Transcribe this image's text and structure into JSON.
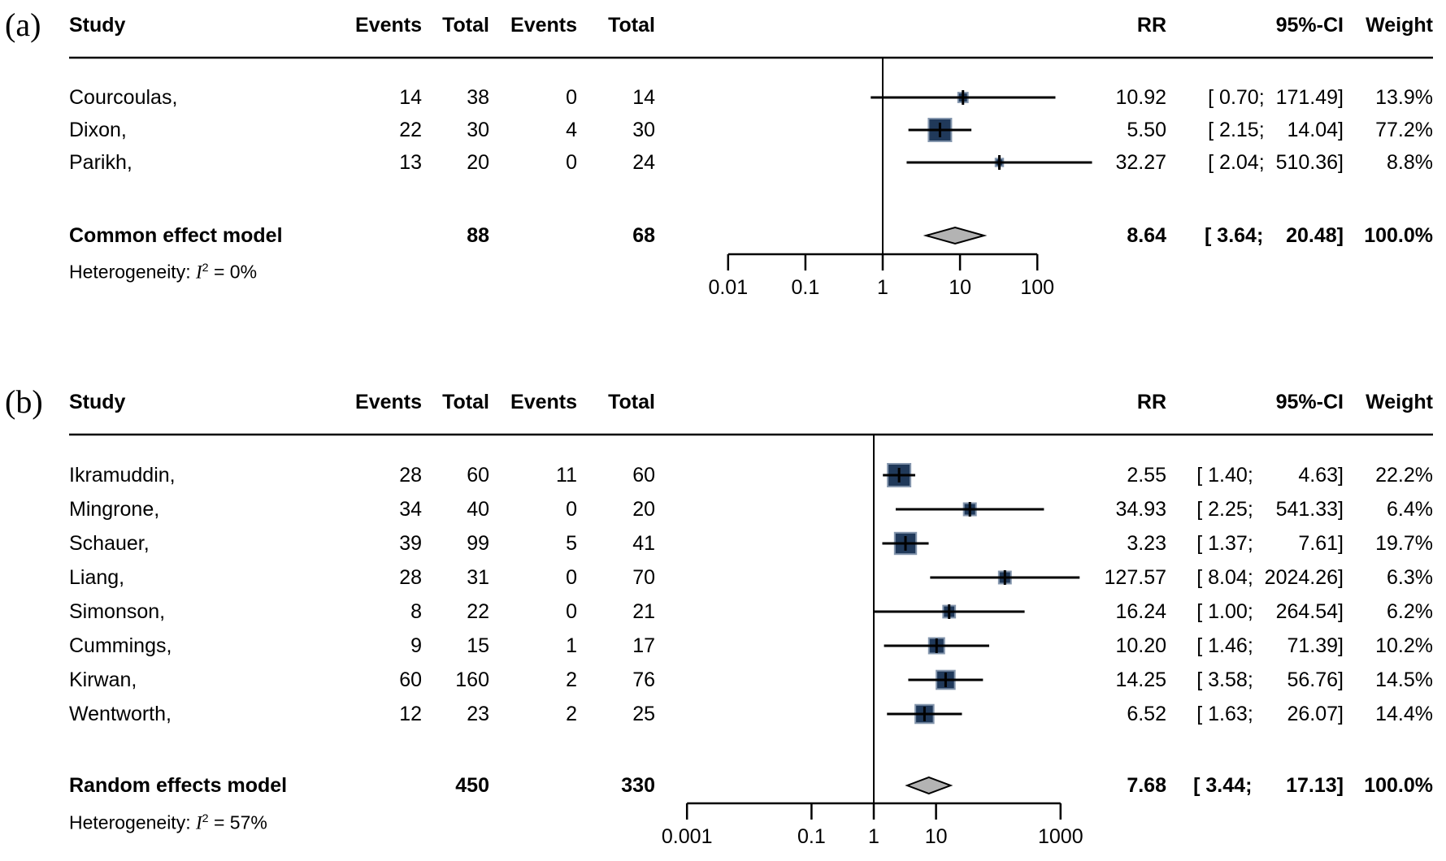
{
  "colors": {
    "square_fill": "#20395a",
    "square_border": "#8496ad",
    "diamond_fill": "#b3b3b3",
    "diamond_border": "#000000",
    "line": "#000000"
  },
  "chart_data": [
    {
      "type": "forest",
      "panel": "(a)",
      "columns": {
        "study": "Study",
        "events1": "Events",
        "total1": "Total",
        "events2": "Events",
        "total2": "Total",
        "rr": "RR",
        "ci": "95%-CI",
        "weight": "Weight"
      },
      "studies": [
        {
          "study": "Courcoulas,",
          "events1": 14,
          "total1": 38,
          "events2": 0,
          "total2": 14,
          "rr": 10.92,
          "ci_lo": 0.7,
          "ci_hi": 171.49,
          "weight": 13.9
        },
        {
          "study": "Dixon,",
          "events1": 22,
          "total1": 30,
          "events2": 4,
          "total2": 30,
          "rr": 5.5,
          "ci_lo": 2.15,
          "ci_hi": 14.04,
          "weight": 77.2
        },
        {
          "study": "Parikh,",
          "events1": 13,
          "total1": 20,
          "events2": 0,
          "total2": 24,
          "rr": 32.27,
          "ci_lo": 2.04,
          "ci_hi": 510.36,
          "weight": 8.8
        }
      ],
      "summary": {
        "label": "Common effect model",
        "total1": 88,
        "total2": 68,
        "rr": 8.64,
        "ci_lo": 3.64,
        "ci_hi": 20.48,
        "weight": 100.0
      },
      "heterogeneity": {
        "prefix": "Heterogeneity: ",
        "stat": "I",
        "sup": "2",
        "rest": " = 0%"
      },
      "axis": {
        "scale": "log",
        "xlim": [
          0.01,
          100
        ],
        "ticks": [
          0.01,
          0.1,
          1,
          10,
          100
        ],
        "tick_labels": [
          "0.01",
          "0.1",
          "1",
          "10",
          "100"
        ]
      }
    },
    {
      "type": "forest",
      "panel": "(b)",
      "columns": {
        "study": "Study",
        "events1": "Events",
        "total1": "Total",
        "events2": "Events",
        "total2": "Total",
        "rr": "RR",
        "ci": "95%-CI",
        "weight": "Weight"
      },
      "studies": [
        {
          "study": "Ikramuddin,",
          "events1": 28,
          "total1": 60,
          "events2": 11,
          "total2": 60,
          "rr": 2.55,
          "ci_lo": 1.4,
          "ci_hi": 4.63,
          "weight": 22.2
        },
        {
          "study": "Mingrone,",
          "events1": 34,
          "total1": 40,
          "events2": 0,
          "total2": 20,
          "rr": 34.93,
          "ci_lo": 2.25,
          "ci_hi": 541.33,
          "weight": 6.4
        },
        {
          "study": "Schauer,",
          "events1": 39,
          "total1": 99,
          "events2": 5,
          "total2": 41,
          "rr": 3.23,
          "ci_lo": 1.37,
          "ci_hi": 7.61,
          "weight": 19.7
        },
        {
          "study": "Liang,",
          "events1": 28,
          "total1": 31,
          "events2": 0,
          "total2": 70,
          "rr": 127.57,
          "ci_lo": 8.04,
          "ci_hi": 2024.26,
          "weight": 6.3
        },
        {
          "study": "Simonson,",
          "events1": 8,
          "total1": 22,
          "events2": 0,
          "total2": 21,
          "rr": 16.24,
          "ci_lo": 1.0,
          "ci_hi": 264.54,
          "weight": 6.2
        },
        {
          "study": "Cummings,",
          "events1": 9,
          "total1": 15,
          "events2": 1,
          "total2": 17,
          "rr": 10.2,
          "ci_lo": 1.46,
          "ci_hi": 71.39,
          "weight": 10.2
        },
        {
          "study": "Kirwan,",
          "events1": 60,
          "total1": 160,
          "events2": 2,
          "total2": 76,
          "rr": 14.25,
          "ci_lo": 3.58,
          "ci_hi": 56.76,
          "weight": 14.5
        },
        {
          "study": "Wentworth,",
          "events1": 12,
          "total1": 23,
          "events2": 2,
          "total2": 25,
          "rr": 6.52,
          "ci_lo": 1.63,
          "ci_hi": 26.07,
          "weight": 14.4
        }
      ],
      "summary": {
        "label": "Random effects model",
        "total1": 450,
        "total2": 330,
        "rr": 7.68,
        "ci_lo": 3.44,
        "ci_hi": 17.13,
        "weight": 100.0
      },
      "heterogeneity": {
        "prefix": "Heterogeneity: ",
        "stat": "I",
        "sup": "2",
        "rest": " = 57%"
      },
      "axis": {
        "scale": "log",
        "xlim": [
          0.001,
          1000
        ],
        "ticks": [
          0.001,
          0.1,
          1,
          10,
          1000
        ],
        "tick_labels": [
          "0.001",
          "0.1",
          "1",
          "10",
          "1000"
        ]
      }
    }
  ]
}
